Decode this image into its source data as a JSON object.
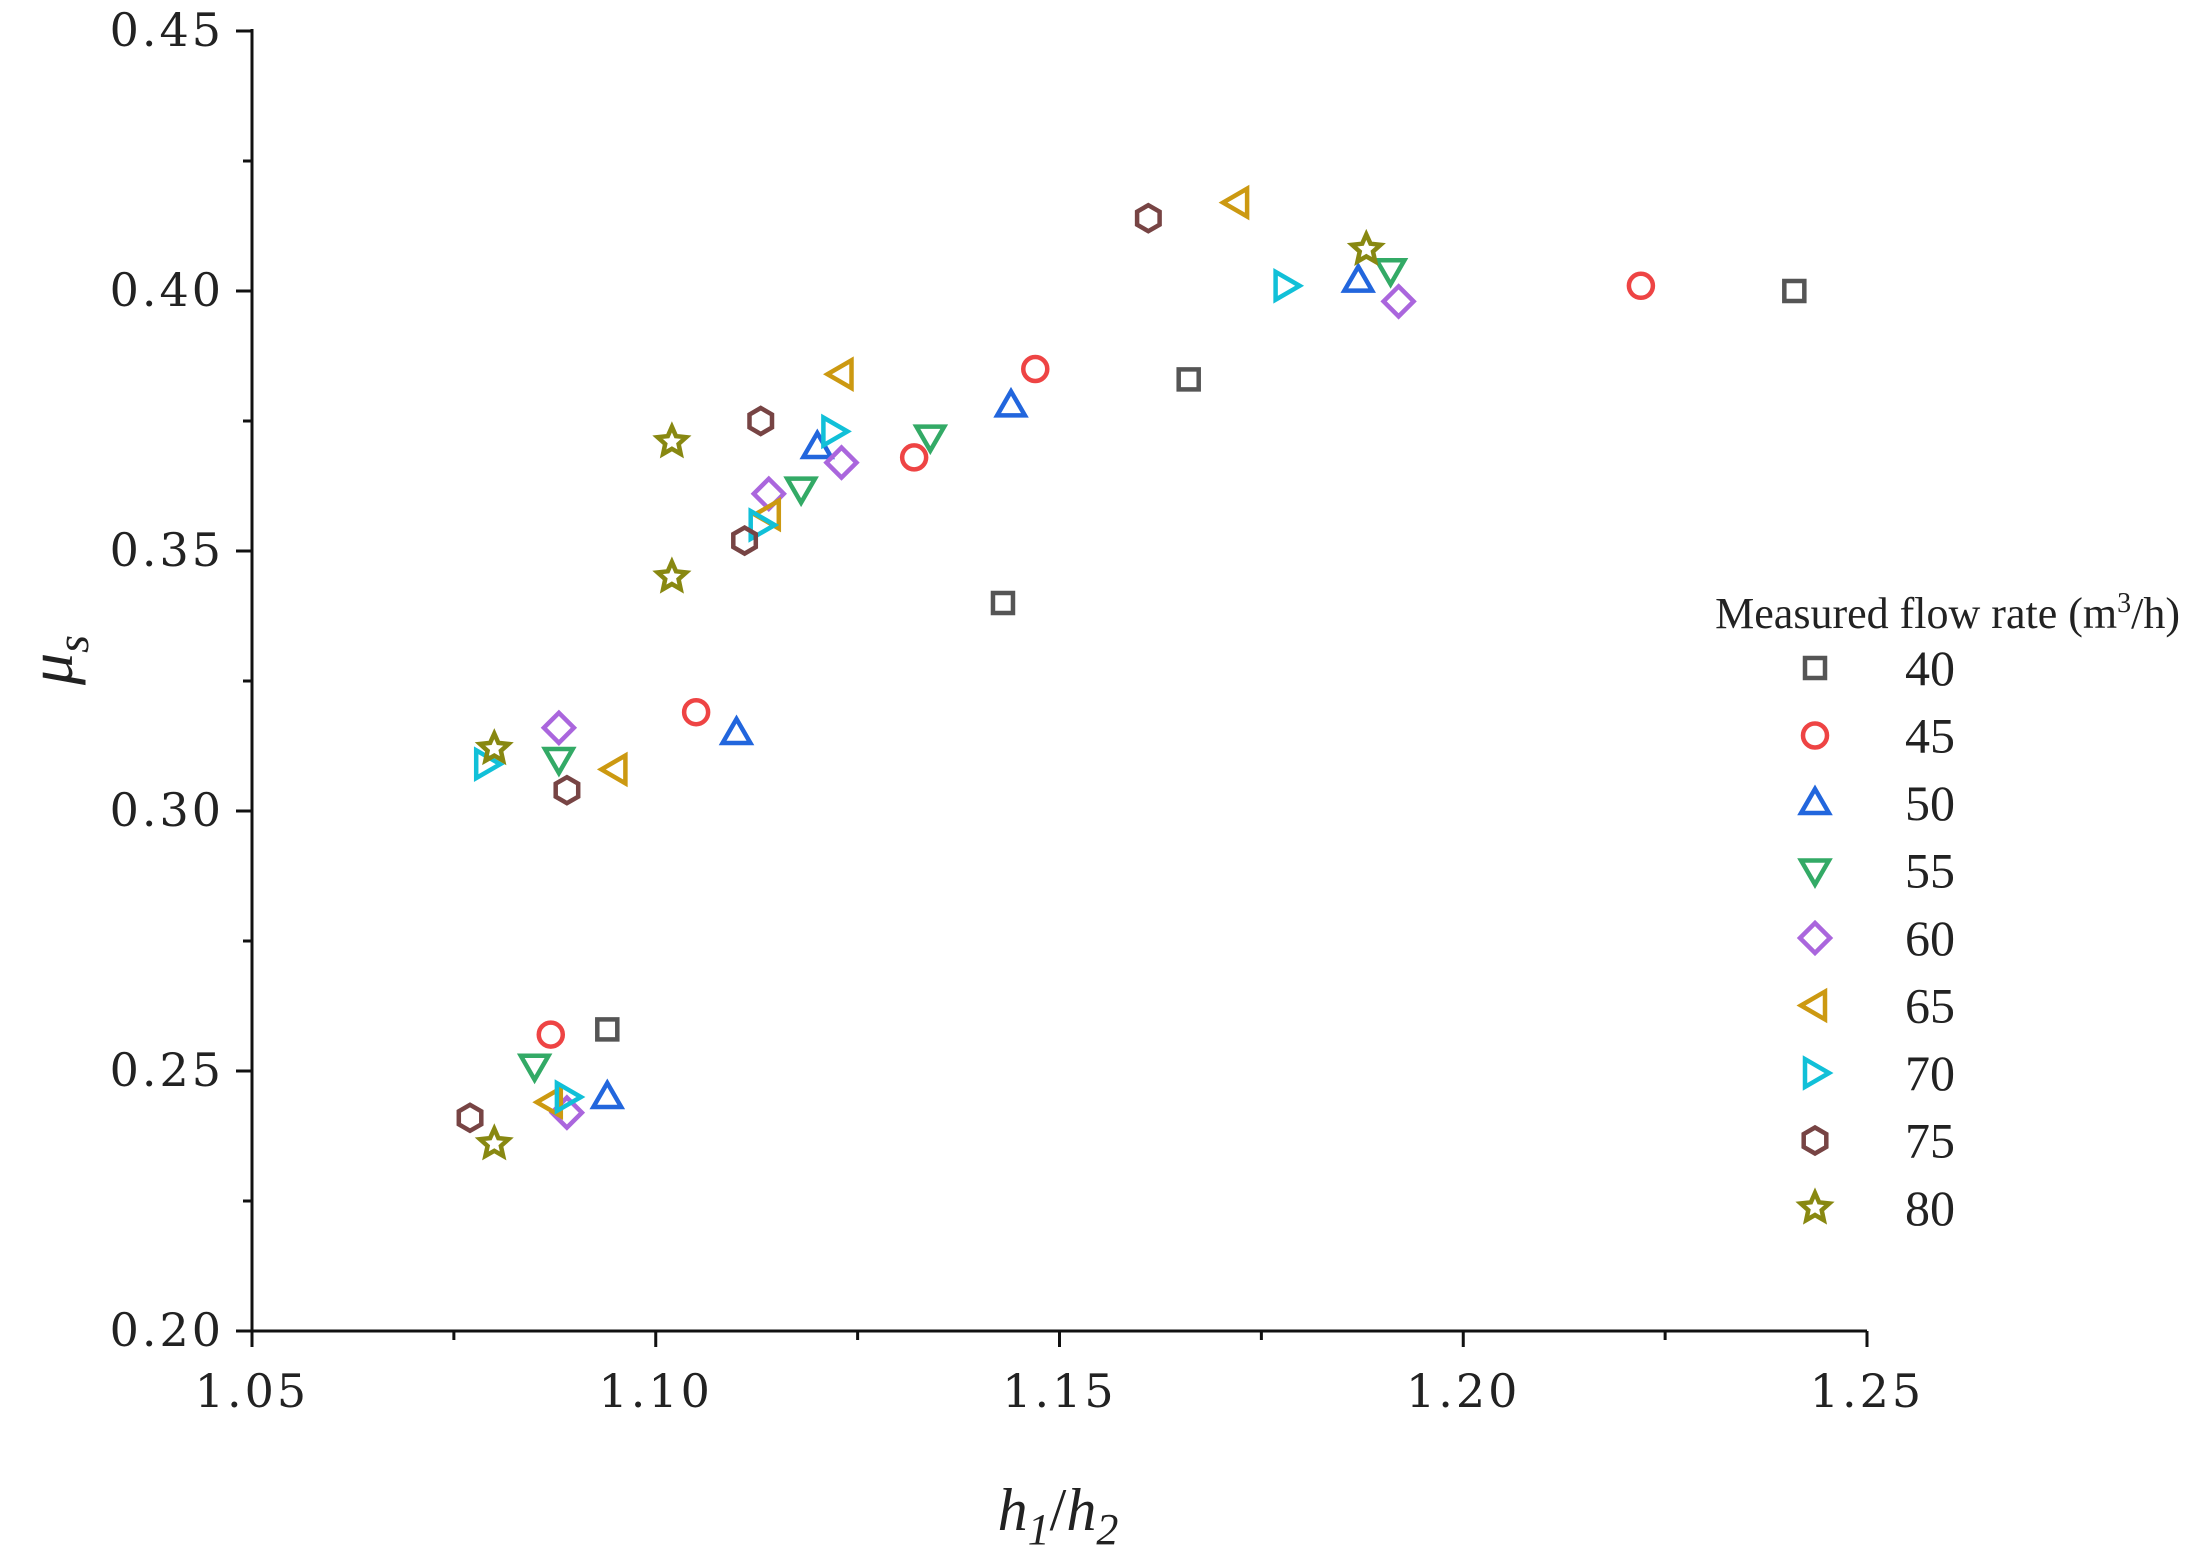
{
  "chart_data": {
    "type": "scatter",
    "title": "",
    "xlabel": {
      "main": "h",
      "sub1": "1",
      "sep": "/",
      "main2": "h",
      "sub2": "2"
    },
    "ylabel": {
      "main": "μ",
      "sub": "s"
    },
    "xlim": [
      1.05,
      1.25
    ],
    "ylim": [
      0.2,
      0.45
    ],
    "x_ticks": [
      1.05,
      1.1,
      1.15,
      1.2,
      1.25
    ],
    "x_tick_labels": [
      "1.05",
      "1.10",
      "1.15",
      "1.20",
      "1.25"
    ],
    "y_ticks": [
      0.2,
      0.25,
      0.3,
      0.35,
      0.4,
      0.45
    ],
    "y_tick_labels": [
      "0.20",
      "0.25",
      "0.30",
      "0.35",
      "0.40",
      "0.45"
    ],
    "grid": false,
    "legend": {
      "position": "right",
      "title_prefix": "Measured flow rate (m",
      "title_sup": "3",
      "title_suffix": "/h)"
    },
    "series": [
      {
        "name": "40",
        "marker": "square",
        "color": "#555555",
        "points": [
          [
            1.094,
            0.258
          ],
          [
            1.143,
            0.34
          ],
          [
            1.166,
            0.383
          ],
          [
            1.241,
            0.4
          ]
        ]
      },
      {
        "name": "45",
        "marker": "circle",
        "color": "#ee4444",
        "points": [
          [
            1.087,
            0.257
          ],
          [
            1.105,
            0.319
          ],
          [
            1.132,
            0.368
          ],
          [
            1.147,
            0.385
          ],
          [
            1.222,
            0.401
          ]
        ]
      },
      {
        "name": "50",
        "marker": "triangle-up",
        "color": "#2266dd",
        "points": [
          [
            1.094,
            0.245
          ],
          [
            1.11,
            0.315
          ],
          [
            1.12,
            0.37
          ],
          [
            1.144,
            0.378
          ],
          [
            1.187,
            0.402
          ]
        ]
      },
      {
        "name": "55",
        "marker": "triangle-down",
        "color": "#33aa66",
        "points": [
          [
            1.085,
            0.251
          ],
          [
            1.088,
            0.31
          ],
          [
            1.118,
            0.362
          ],
          [
            1.134,
            0.372
          ],
          [
            1.191,
            0.404
          ]
        ]
      },
      {
        "name": "60",
        "marker": "diamond",
        "color": "#aa66dd",
        "points": [
          [
            1.089,
            0.242
          ],
          [
            1.088,
            0.316
          ],
          [
            1.114,
            0.361
          ],
          [
            1.123,
            0.367
          ],
          [
            1.192,
            0.398
          ]
        ]
      },
      {
        "name": "65",
        "marker": "triangle-left",
        "color": "#cc9911",
        "points": [
          [
            1.087,
            0.244
          ],
          [
            1.095,
            0.308
          ],
          [
            1.114,
            0.357
          ],
          [
            1.123,
            0.384
          ],
          [
            1.172,
            0.417
          ]
        ]
      },
      {
        "name": "70",
        "marker": "triangle-right",
        "color": "#11c0d8",
        "points": [
          [
            1.089,
            0.245
          ],
          [
            1.079,
            0.309
          ],
          [
            1.113,
            0.355
          ],
          [
            1.122,
            0.373
          ],
          [
            1.178,
            0.401
          ]
        ]
      },
      {
        "name": "75",
        "marker": "hexagon",
        "color": "#774444",
        "points": [
          [
            1.077,
            0.241
          ],
          [
            1.089,
            0.304
          ],
          [
            1.111,
            0.352
          ],
          [
            1.113,
            0.375
          ],
          [
            1.161,
            0.414
          ]
        ]
      },
      {
        "name": "80",
        "marker": "star",
        "color": "#888811",
        "points": [
          [
            1.08,
            0.236
          ],
          [
            1.08,
            0.312
          ],
          [
            1.102,
            0.345
          ],
          [
            1.102,
            0.371
          ],
          [
            1.188,
            0.408
          ]
        ]
      }
    ]
  }
}
